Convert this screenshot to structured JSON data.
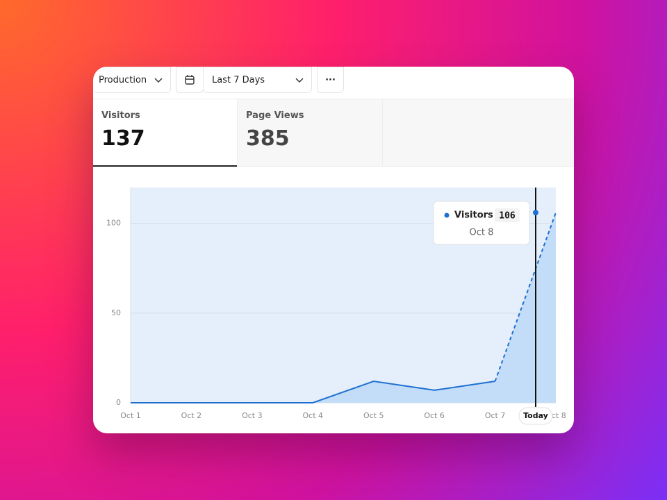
{
  "toolbar": {
    "environment": "Production",
    "range": "Last 7 Days"
  },
  "metrics": [
    {
      "label": "Visitors",
      "value": 137
    },
    {
      "label": "Page Views",
      "value": 385
    }
  ],
  "chart_data": {
    "type": "line",
    "categories": [
      "Oct 1",
      "Oct 2",
      "Oct 3",
      "Oct 4",
      "Oct 5",
      "Oct 6",
      "Oct 7",
      "Oct 8"
    ],
    "series": [
      {
        "name": "Visitors",
        "color": "#1f6fd1",
        "values": [
          0,
          0,
          0,
          0,
          12,
          7,
          12,
          106
        ]
      }
    ],
    "ylim": [
      0,
      120
    ],
    "yticks": [
      0,
      50,
      100
    ],
    "grid": true,
    "marker_label": "Today"
  }
}
